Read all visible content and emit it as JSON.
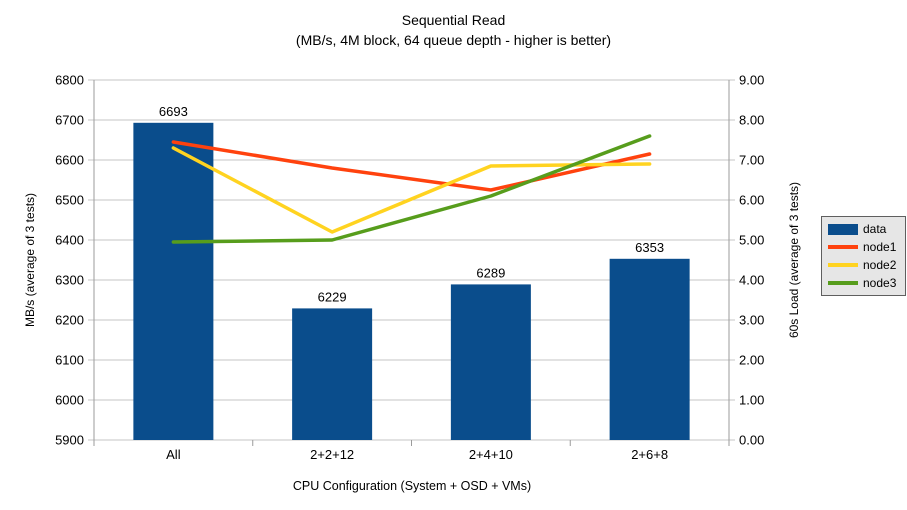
{
  "title": "Sequential Read",
  "subtitle": "(MB/s, 4M block, 64 queue depth - higher is better)",
  "chart_data": {
    "type": "bar+line combo",
    "categories": [
      "All",
      "2+2+12",
      "2+4+10",
      "2+6+8"
    ],
    "series": [
      {
        "name": "data",
        "type": "bar",
        "axis": "left",
        "color": "#0a4d8c",
        "values": [
          6693,
          6229,
          6289,
          6353
        ]
      },
      {
        "name": "node1",
        "type": "line",
        "axis": "right",
        "color": "#ff420e",
        "values": [
          7.45,
          6.8,
          6.25,
          7.15
        ]
      },
      {
        "name": "node2",
        "type": "line",
        "axis": "right",
        "color": "#ffd320",
        "values": [
          7.3,
          5.2,
          6.85,
          6.9
        ]
      },
      {
        "name": "node3",
        "type": "line",
        "axis": "right",
        "color": "#579d1c",
        "values": [
          4.95,
          5.0,
          6.1,
          7.6
        ]
      }
    ],
    "left_axis": {
      "label": "MB/s (average of 3 tests)",
      "min": 5900,
      "max": 6800,
      "step": 100,
      "format": "int"
    },
    "right_axis": {
      "label": "60s Load (average of 3 tests)",
      "min": 0,
      "max": 9,
      "step": 1,
      "format": "2dp"
    },
    "x_axis": {
      "label": "CPU Configuration (System + OSD + VMs)"
    },
    "grid": "horizontal major gridlines",
    "legend_position": "right",
    "bar_value_labels_shown": true,
    "colors": {
      "background": "#ffffff",
      "grid": "#c6c6c6",
      "axis": "#9b9b9b",
      "text": "#000000",
      "legend_bg": "#e6e6e6",
      "legend_border": "#5f5f5f"
    }
  }
}
